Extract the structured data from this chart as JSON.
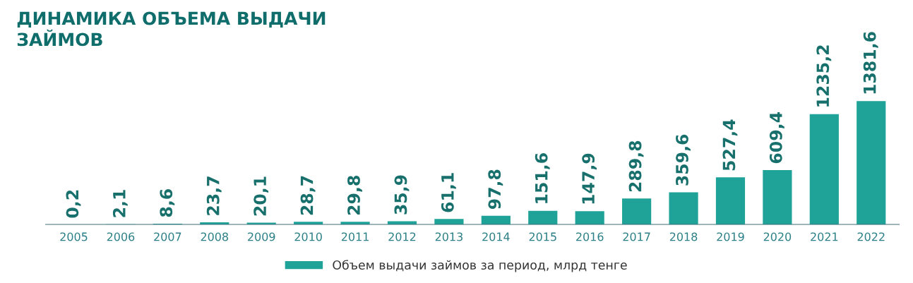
{
  "chart_data": {
    "type": "bar",
    "title": "ДИНАМИКА ОБЪЕМА ВЫДАЧИ\nЗАЙМОВ",
    "categories": [
      "2005",
      "2006",
      "2007",
      "2008",
      "2009",
      "2010",
      "2011",
      "2012",
      "2013",
      "2014",
      "2015",
      "2016",
      "2017",
      "2018",
      "2019",
      "2020",
      "2021",
      "2022"
    ],
    "series": [
      {
        "name": "Объем выдачи займов за период, млрд тенге",
        "color": "#1fa398",
        "values": [
          0.2,
          2.1,
          8.6,
          23.7,
          20.1,
          28.7,
          29.8,
          35.9,
          61.1,
          97.8,
          151.6,
          147.9,
          289.8,
          359.6,
          527.4,
          609.4,
          1235.2,
          1381.6
        ],
        "value_labels": [
          "0,2",
          "2,1",
          "8,6",
          "23,7",
          "20,1",
          "28,7",
          "29,8",
          "35,9",
          "61,1",
          "97,8",
          "151,6",
          "147,9",
          "289,8",
          "359,6",
          "527,4",
          "609,4",
          "1235,2",
          "1381,6"
        ]
      }
    ],
    "legend": "bottom",
    "grid": false
  }
}
